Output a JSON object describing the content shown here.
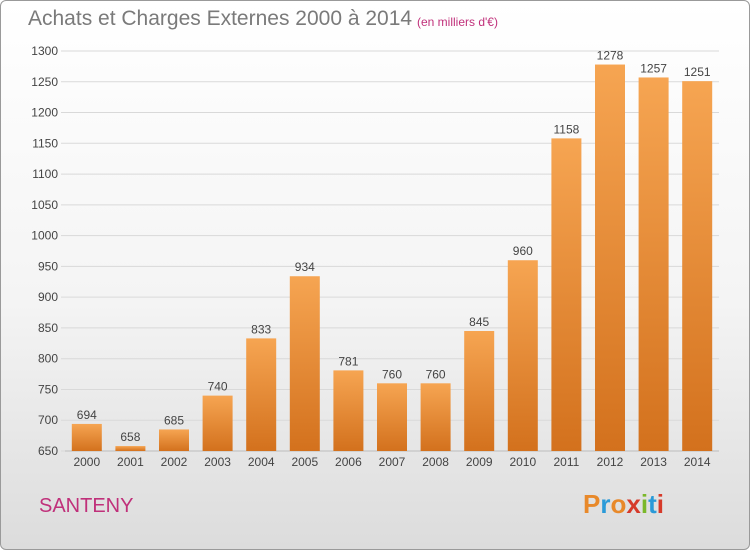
{
  "header": {
    "title": "Achats et Charges Externes 2000 à 2014",
    "subtitle": "(en milliers d'€)"
  },
  "footer": {
    "commune": "SANTENY",
    "logo_text": "Proxiti",
    "logo_colors": [
      "#e8892a",
      "#2a9ad8",
      "#e8892a",
      "#d63a2a",
      "#7ab82a",
      "#2a9ad8",
      "#d63a2a"
    ]
  },
  "colors": {
    "bar_light": "#f6a552",
    "bar_dark": "#d3711d",
    "gridline": "#d9d9d9",
    "axis_text": "#444444"
  },
  "chart_data": {
    "type": "bar",
    "title": "Achats et Charges Externes 2000 à 2014",
    "subtitle": "(en milliers d'€)",
    "categories": [
      "2000",
      "2001",
      "2002",
      "2003",
      "2004",
      "2005",
      "2006",
      "2007",
      "2008",
      "2009",
      "2010",
      "2011",
      "2012",
      "2013",
      "2014"
    ],
    "values": [
      694,
      658,
      685,
      740,
      833,
      934,
      781,
      760,
      760,
      845,
      960,
      1158,
      1278,
      1257,
      1251
    ],
    "ylim": [
      650,
      1300
    ],
    "yticks": [
      650,
      700,
      750,
      800,
      850,
      900,
      950,
      1000,
      1050,
      1100,
      1150,
      1200,
      1250,
      1300
    ],
    "grid": true,
    "xlabel": "",
    "ylabel": ""
  }
}
